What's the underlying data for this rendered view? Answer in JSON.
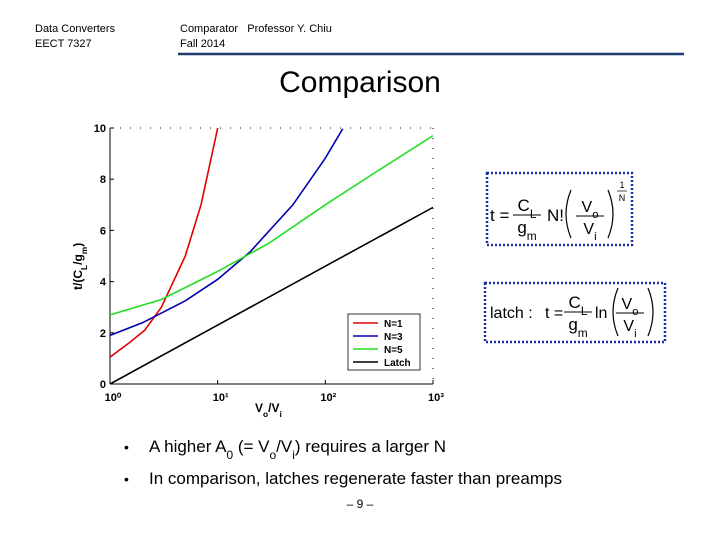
{
  "header": {
    "course": "Data Converters",
    "code": "EECT 7327",
    "topic": "Comparator   Professor Y. Chiu",
    "term": "Fall 2014"
  },
  "title": "Comparison",
  "chart_data": {
    "type": "line",
    "log_x": true,
    "x_label": [
      "V",
      "o",
      "/V",
      "i"
    ],
    "y_label": [
      "t/(C",
      "L",
      "/g",
      "m",
      ")"
    ],
    "xlim": [
      1,
      1000
    ],
    "ylim": [
      0,
      10
    ],
    "xticks": [
      {
        "value": 1,
        "label": "10⁰"
      },
      {
        "value": 10,
        "label": "10¹"
      },
      {
        "value": 100,
        "label": "10²"
      },
      {
        "value": 1000,
        "label": "10³"
      }
    ],
    "yticks": [
      0,
      2,
      4,
      6,
      8,
      10
    ],
    "legend": "lower right",
    "series": [
      {
        "name": "N=1",
        "color": "#e00000",
        "x": [
          1,
          1.5,
          2.1,
          3,
          5,
          7,
          10
        ],
        "values": [
          1.05,
          1.6,
          2.1,
          3,
          5,
          7,
          10
        ]
      },
      {
        "name": "N=3",
        "color": "#0000b0",
        "x": [
          1,
          2,
          5,
          10,
          20,
          50,
          100,
          145
        ],
        "values": [
          1.9,
          2.39,
          3.25,
          4.09,
          5.16,
          7.0,
          8.82,
          9.97
        ]
      },
      {
        "name": "N=5",
        "color": "#22dd22",
        "x": [
          1,
          3,
          10,
          30,
          100,
          300,
          1000
        ],
        "values": [
          2.7,
          3.3,
          4.4,
          5.5,
          7.0,
          8.3,
          9.7
        ]
      },
      {
        "name": "Latch",
        "color": "#000000",
        "x": [
          1,
          10,
          100,
          1000
        ],
        "values": [
          0,
          2.3,
          4.6,
          6.9
        ]
      }
    ]
  },
  "formula_1": {
    "t": "t =",
    "num": [
      "C",
      "L"
    ],
    "den": [
      "g",
      "m"
    ],
    "factorial": "N!",
    "inner_num": [
      "V",
      "o"
    ],
    "inner_den": [
      "V",
      "i"
    ],
    "exp_num": "1",
    "exp_den": "N"
  },
  "formula_2": {
    "label": "latch :",
    "t": "t =",
    "num": [
      "C",
      "L"
    ],
    "den": [
      "g",
      "m"
    ],
    "log": "ln",
    "inner_num": [
      "V",
      "o"
    ],
    "inner_den": [
      "V",
      "i"
    ]
  },
  "bullets": [
    [
      "A higher A",
      "0",
      " (= V",
      "o",
      "/V",
      "i",
      ") requires a larger N"
    ],
    [
      "In comparison, latches regenerate faster than preamps"
    ]
  ],
  "page_number": "– 9 –"
}
